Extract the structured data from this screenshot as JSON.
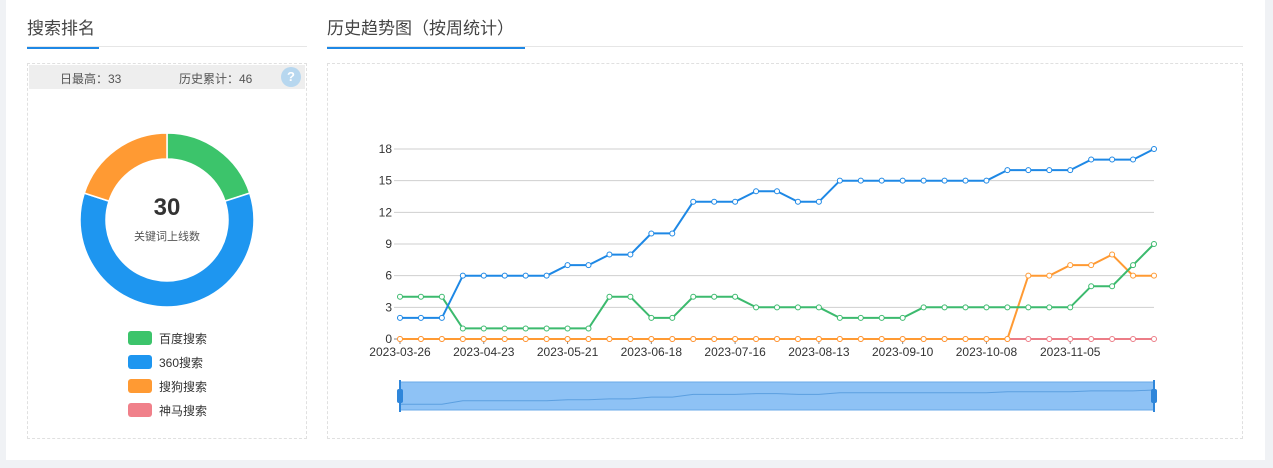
{
  "left_panel": {
    "title": "搜索排名",
    "stats": {
      "daily_max": "日最高：33",
      "history_total": "历史累计：46"
    },
    "help_icon": "?",
    "donut": {
      "total": "30",
      "label": "关键词上线数",
      "segments": [
        {
          "name": "百度搜索",
          "value": 6,
          "color": "#3cc46b"
        },
        {
          "name": "360搜索",
          "value": 18,
          "color": "#1e96f0"
        },
        {
          "name": "搜狗搜索",
          "value": 6,
          "color": "#ff9a33"
        },
        {
          "name": "神马搜索",
          "value": 0,
          "color": "#f0808a"
        }
      ]
    }
  },
  "right_panel": {
    "title": "历史趋势图（按周统计）"
  },
  "chart_data": {
    "type": "line",
    "x": [
      "2023-03-26",
      "2023-04-02",
      "2023-04-09",
      "2023-04-16",
      "2023-04-23",
      "2023-04-30",
      "2023-05-07",
      "2023-05-14",
      "2023-05-21",
      "2023-05-28",
      "2023-06-04",
      "2023-06-11",
      "2023-06-18",
      "2023-06-25",
      "2023-07-02",
      "2023-07-09",
      "2023-07-16",
      "2023-07-23",
      "2023-07-30",
      "2023-08-06",
      "2023-08-13",
      "2023-08-20",
      "2023-08-27",
      "2023-09-03",
      "2023-09-10",
      "2023-09-17",
      "2023-09-24",
      "2023-10-01",
      "2023-10-08",
      "2023-10-15",
      "2023-10-22",
      "2023-10-29",
      "2023-11-05",
      "2023-11-12",
      "2023-11-19",
      "2023-11-26",
      "2023-12-03"
    ],
    "x_tick_labels": [
      "2023-03-26",
      "2023-04-23",
      "2023-05-21",
      "2023-06-18",
      "2023-07-16",
      "2023-08-13",
      "2023-09-10",
      "2023-10-08",
      "2023-11-05"
    ],
    "yticks": [
      0,
      3,
      6,
      9,
      12,
      15,
      18
    ],
    "ylim": [
      0,
      18
    ],
    "grid": true,
    "series": [
      {
        "name": "360搜索",
        "color": "#1e88e5",
        "values": [
          2,
          2,
          2,
          6,
          6,
          6,
          6,
          6,
          7,
          7,
          8,
          8,
          10,
          10,
          13,
          13,
          13,
          14,
          14,
          13,
          13,
          15,
          15,
          15,
          15,
          15,
          15,
          15,
          15,
          16,
          16,
          16,
          16,
          17,
          17,
          17,
          18
        ]
      },
      {
        "name": "百度搜索",
        "color": "#3cba6e",
        "values": [
          4,
          4,
          4,
          1,
          1,
          1,
          1,
          1,
          1,
          1,
          4,
          4,
          2,
          2,
          4,
          4,
          4,
          3,
          3,
          3,
          3,
          2,
          2,
          2,
          2,
          3,
          3,
          3,
          3,
          3,
          3,
          3,
          3,
          5,
          5,
          7,
          9
        ]
      },
      {
        "name": "搜狗搜索",
        "color": "#ff9a33",
        "values": [
          0,
          0,
          0,
          0,
          0,
          0,
          0,
          0,
          0,
          0,
          0,
          0,
          0,
          0,
          0,
          0,
          0,
          0,
          0,
          0,
          0,
          0,
          0,
          0,
          0,
          0,
          0,
          0,
          0,
          0,
          6,
          6,
          7,
          7,
          8,
          6,
          6
        ]
      },
      {
        "name": "神马搜索",
        "color": "#ec7d87",
        "values": [
          0,
          0,
          0,
          0,
          0,
          0,
          0,
          0,
          0,
          0,
          0,
          0,
          0,
          0,
          0,
          0,
          0,
          0,
          0,
          0,
          0,
          0,
          0,
          0,
          0,
          0,
          0,
          0,
          0,
          0,
          0,
          0,
          0,
          0,
          0,
          0,
          0
        ]
      }
    ]
  }
}
